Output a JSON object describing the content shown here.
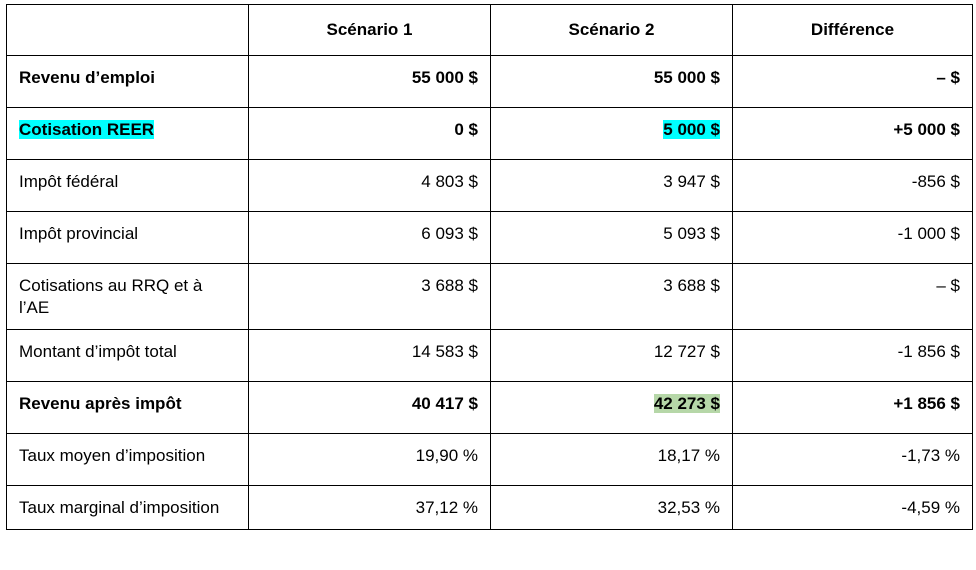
{
  "table": {
    "headers": [
      "",
      "Scénario 1",
      "Scénario 2",
      "Différence"
    ],
    "rows": [
      {
        "label": "Revenu d’emploi",
        "s1": "55 000 $",
        "s2": "55 000 $",
        "diff": "– $",
        "bold": true,
        "label_highlight": "",
        "s2_highlight": ""
      },
      {
        "label": "Cotisation REER",
        "s1": "0 $",
        "s2": "5 000 $",
        "diff": "+5 000 $",
        "bold": true,
        "label_highlight": "#00ffff",
        "s2_highlight": "#00ffff"
      },
      {
        "label": "Impôt fédéral",
        "s1": "4 803 $",
        "s2": "3 947 $",
        "diff": "-856 $",
        "bold": false
      },
      {
        "label": "Impôt provincial",
        "s1": "6 093 $",
        "s2": "5 093 $",
        "diff": "-1 000 $",
        "bold": false
      },
      {
        "label": "Cotisations au RRQ et à l’AE",
        "s1": "3 688 $",
        "s2": "3 688 $",
        "diff": "– $",
        "bold": false
      },
      {
        "label": "Montant d’impôt total",
        "s1": "14 583 $",
        "s2": "12 727 $",
        "diff": "-1 856 $",
        "bold": false
      },
      {
        "label": "Revenu après impôt",
        "s1": "40 417 $",
        "s2": "42 273 $",
        "diff": "+1 856 $",
        "bold": true,
        "label_highlight": "",
        "s2_highlight": "#b6d7a8"
      },
      {
        "label": "Taux moyen d’imposition",
        "s1": "19,90 %",
        "s2": "18,17 %",
        "diff": "-1,73 %",
        "bold": false
      },
      {
        "label": "Taux marginal d’imposition",
        "s1": "37,12 %",
        "s2": "32,53 %",
        "diff": "-4,59 %",
        "bold": false
      }
    ]
  }
}
